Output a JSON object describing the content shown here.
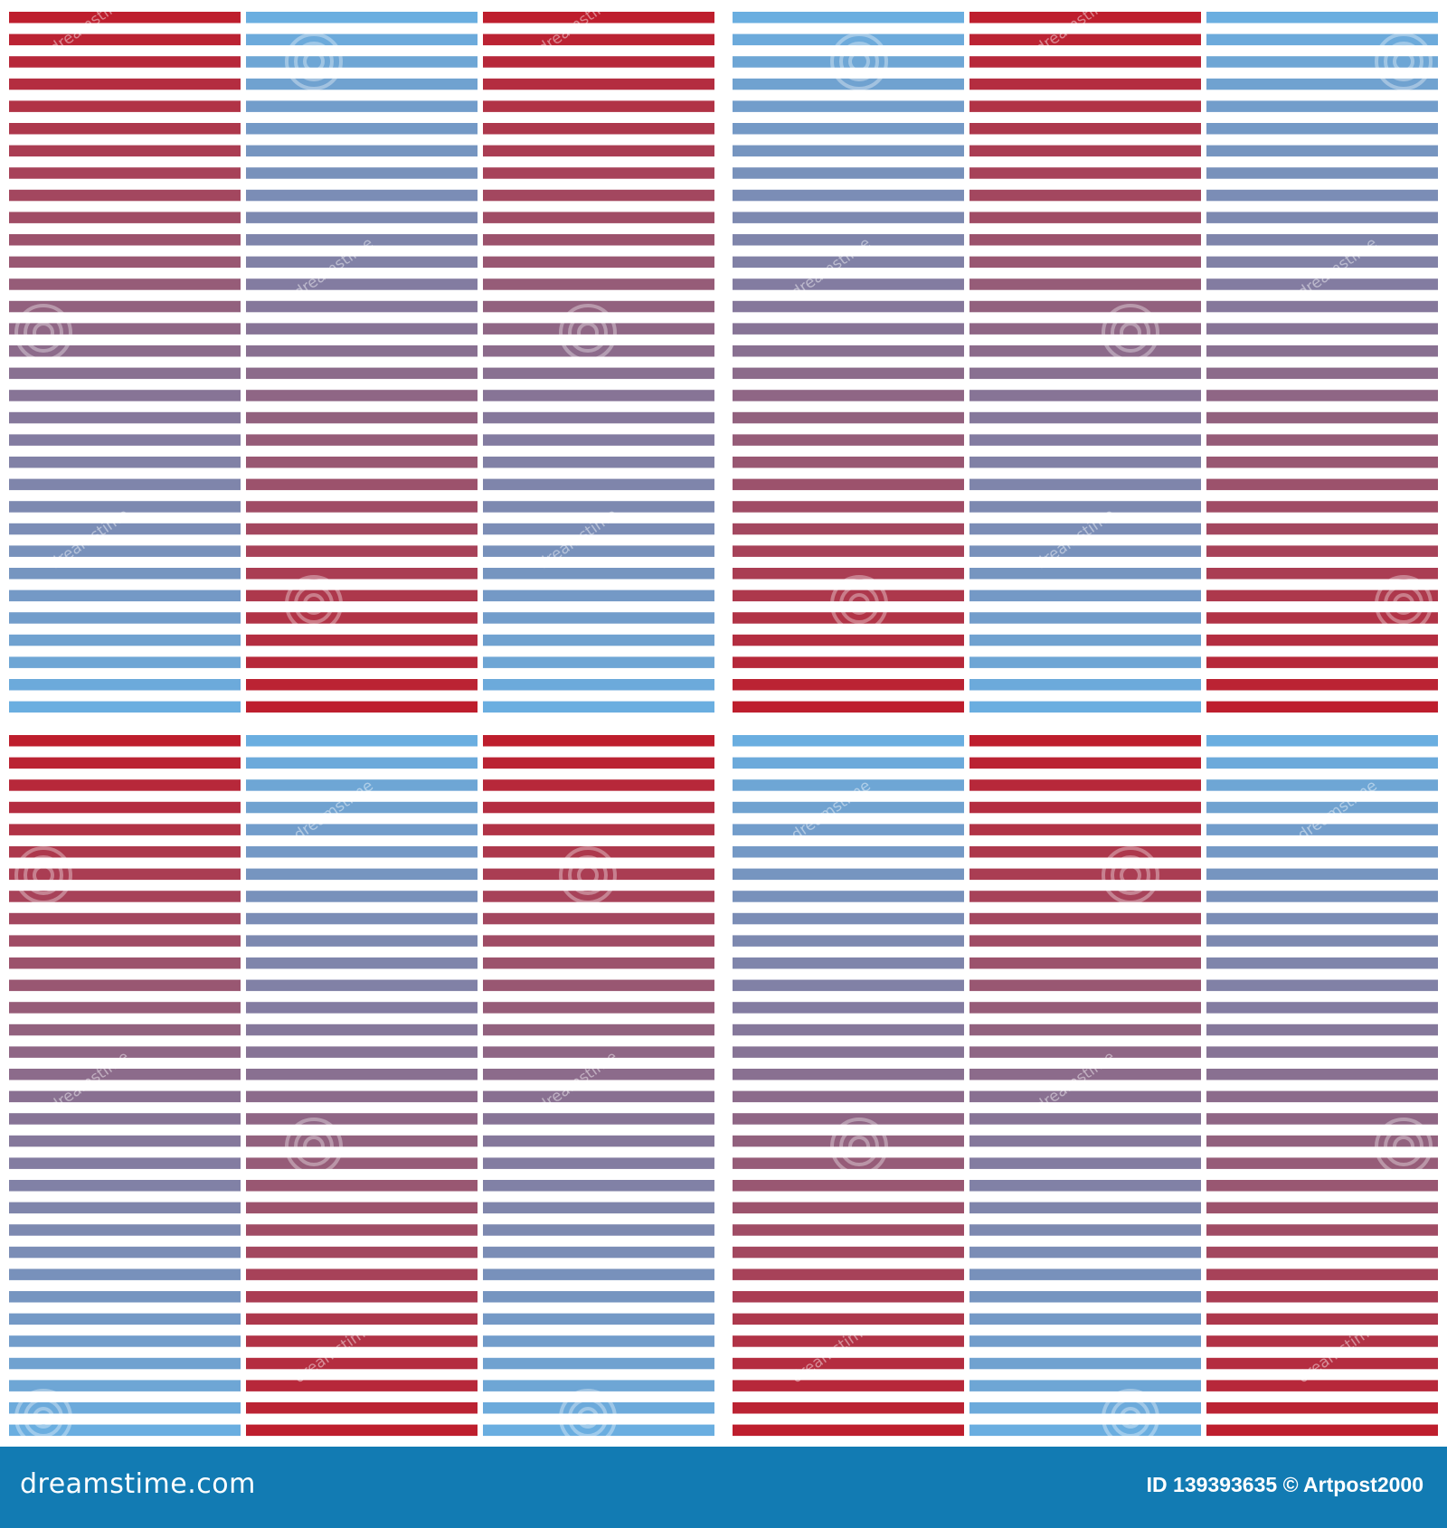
{
  "colors": {
    "red": "#be1e2d",
    "purple": "#8a6e8e",
    "blue": "#6aaee0",
    "background": "#ffffff",
    "footer": "#127bb3"
  },
  "pattern": {
    "tile_columns": 3,
    "tile_rows": 3,
    "stripes_per_tile": 32,
    "tile_start_colors": [
      [
        "red",
        "blue",
        "red",
        "blue",
        "red",
        "blue"
      ],
      [
        "red",
        "blue",
        "red",
        "blue",
        "red",
        "blue"
      ]
    ]
  },
  "watermark": {
    "text": "dreamstime",
    "icon": "dreamstime-swirl-icon"
  },
  "footer": {
    "brand": "dreamstime.com",
    "credit": "ID 139393635 © Artpost2000"
  }
}
